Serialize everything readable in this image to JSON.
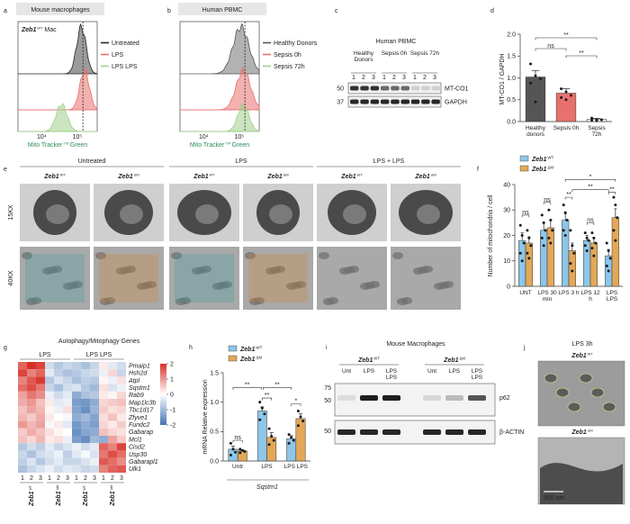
{
  "letters": [
    "a",
    "b",
    "c",
    "d",
    "e",
    "f",
    "g",
    "h",
    "i",
    "j"
  ],
  "genotypes": {
    "wt": {
      "gene": "Zeb1",
      "sup": "WT"
    },
    "dm": {
      "gene": "Zeb1",
      "sup": "ΔM"
    }
  },
  "a": {
    "title": "Mouse macrophages",
    "genotype": {
      "gene": "Zeb1",
      "sup": "WT",
      "suffix": "Mac"
    },
    "legend": [
      {
        "name": "Untreated",
        "color": "#222222"
      },
      {
        "name": "LPS",
        "color": "#e8716d"
      },
      {
        "name": "LPS LPS",
        "color": "#9fd08a"
      }
    ],
    "x_label": {
      "text": "Mito Tracker",
      "sup": "TM",
      "rest": "Green"
    },
    "x_ticks": [
      "10⁴",
      "10⁵"
    ]
  },
  "b": {
    "title": "Human PBMC",
    "legend": [
      {
        "name": "Healthy Donors",
        "color": "#555555"
      },
      {
        "name": "Sepsis 0h",
        "color": "#e8716d"
      },
      {
        "name": "Sepsis 72h",
        "color": "#9fd08a"
      }
    ],
    "x_label": {
      "text": "Mito Tracker",
      "sup": "TM",
      "rest": "Green"
    },
    "x_ticks": [
      "10⁴",
      "10⁵"
    ]
  },
  "c": {
    "title": "Human PBMC",
    "groups": [
      "Healthy Donors",
      "Sepsis 0h",
      "Sepsis 72h"
    ],
    "lanes": [
      "1",
      "2",
      "3"
    ],
    "markers": [
      "50",
      "37"
    ],
    "bands": [
      "MT-CO1",
      "GAPDH"
    ]
  },
  "d": {
    "type": "bar",
    "y_label": "MT-CO1 / GAPDH",
    "categories": [
      "Healthy donors",
      "Sepsis 0h",
      "Sepsis 72h"
    ],
    "values": [
      1.02,
      0.65,
      0.05
    ],
    "errors": [
      0.15,
      0.1,
      0.02
    ],
    "colors": [
      "#555555",
      "#e8716d",
      "#eeeeee"
    ],
    "points": [
      [
        1.32,
        1.05,
        0.98,
        0.88,
        0.45
      ],
      [
        0.75,
        0.68,
        0.6,
        0.55,
        0.5
      ],
      [
        0.08,
        0.05,
        0.04,
        0.03,
        0.02
      ]
    ],
    "ylim": [
      0,
      2
    ],
    "yticks": [
      {
        "value": 0,
        "label": "0.0"
      },
      {
        "value": 0.5,
        "label": "0.5"
      },
      {
        "value": 1,
        "label": "1.0"
      },
      {
        "value": 1.5,
        "label": "1.5"
      },
      {
        "value": 2,
        "label": "2.0"
      }
    ],
    "significance": [
      "**",
      "ns",
      "**"
    ]
  },
  "e": {
    "groups": [
      "Untreated",
      "LPS",
      "LPS + LPS"
    ],
    "rows": [
      "15KX",
      "40KX"
    ]
  },
  "f": {
    "type": "bar",
    "y_label": "Number of mitochondria / cell",
    "categories": [
      "UNT",
      "LPS 30 min",
      "LPS 3 h",
      "LPS 12 h",
      "LPS LPS"
    ],
    "series": [
      {
        "name": "Zeb1",
        "sup": "WT",
        "color": "#8ec6e8",
        "values": [
          18,
          22,
          26,
          18,
          12
        ],
        "errors": [
          3,
          3,
          2.5,
          2,
          2.5
        ],
        "points": [
          [
            24,
            20,
            17,
            13,
            10
          ],
          [
            28,
            25,
            22,
            19,
            16
          ],
          [
            32,
            29,
            26,
            22,
            20
          ],
          [
            21,
            19,
            18,
            16,
            14
          ],
          [
            17,
            14,
            11,
            8,
            6
          ]
        ]
      },
      {
        "name": "Zeb1",
        "sup": "ΔM",
        "color": "#e3a857",
        "values": [
          17,
          23,
          14,
          17,
          27
        ],
        "errors": [
          2.5,
          3,
          3,
          2,
          3.5
        ],
        "points": [
          [
            22,
            19,
            16,
            13,
            11
          ],
          [
            30,
            26,
            22,
            19,
            17
          ],
          [
            22,
            16,
            13,
            9,
            6
          ],
          [
            21,
            19,
            17,
            15,
            12
          ],
          [
            35,
            32,
            27,
            22,
            18
          ]
        ]
      }
    ],
    "ylim": [
      0,
      40
    ],
    "yticks": [
      0,
      10,
      20,
      30,
      40
    ],
    "significance": [
      "ns",
      "ns",
      "**",
      "ns",
      "**",
      "**",
      "*"
    ]
  },
  "g": {
    "title": "Autophagy/Mitophagy Genes",
    "groups": [
      "LPS",
      "LPS LPS"
    ],
    "genes": [
      "Pmaip1",
      "Hsh2d",
      "Atpl",
      "Sqstm1",
      "Rab9",
      "Map1lc3b",
      "Tbc1d17",
      "Zfyve1",
      "Fundc2",
      "Gabarap",
      "Mcl1",
      "Cisd2",
      "Usp30",
      "Gabarapl1",
      "Ulk1"
    ],
    "columns": [
      "1",
      "2",
      "3"
    ],
    "values": [
      [
        1.5,
        2,
        1.8,
        -0.5,
        -0.8,
        -0.6,
        -0.7,
        -0.9,
        -0.6,
        0.2,
        -0.3,
        -0.5
      ],
      [
        1.8,
        1.2,
        1.5,
        -0.3,
        -0.7,
        -0.9,
        -0.8,
        -0.6,
        -0.5,
        -0.2,
        0.4,
        -0.6
      ],
      [
        1.2,
        1.6,
        1.9,
        -0.8,
        -0.4,
        -0.6,
        -0.9,
        -0.7,
        -0.8,
        0.1,
        -0.2,
        0.3
      ],
      [
        1.4,
        1.7,
        1.3,
        -0.6,
        -0.9,
        -0.5,
        -0.4,
        -0.8,
        -1,
        0.3,
        -0.4,
        -0.2
      ],
      [
        0.9,
        1.3,
        1.1,
        -0.2,
        -0.5,
        -0.3,
        -1.2,
        -0.9,
        -0.8,
        0.2,
        0.1,
        0.4
      ],
      [
        0.8,
        1,
        0.6,
        0.2,
        -0.3,
        -0.2,
        -1.4,
        -1.5,
        -1.2,
        0.4,
        0.5,
        0.6
      ],
      [
        0.6,
        0.9,
        0.7,
        0.1,
        -0.2,
        0.3,
        -1.3,
        -1.6,
        -1.1,
        0.5,
        0.3,
        0.4
      ],
      [
        0.7,
        0.5,
        0.8,
        0.2,
        0,
        -0.1,
        -1.2,
        -1,
        -1.3,
        0.3,
        0.6,
        0.2
      ],
      [
        1,
        0.7,
        0.9,
        -0.1,
        0.2,
        -0.3,
        -1.5,
        -1.2,
        -1.4,
        0.4,
        0.2,
        0.5
      ],
      [
        0.5,
        0.8,
        0.6,
        0.3,
        0.1,
        0,
        -1.6,
        -1.3,
        -1.2,
        0.6,
        0.4,
        0.3
      ],
      [
        0.6,
        0.4,
        0.7,
        0.2,
        0.3,
        -0.2,
        -1.4,
        -1.6,
        -1,
        -1.2,
        0.9,
        0.5
      ],
      [
        -0.8,
        -0.5,
        -0.7,
        -0.3,
        -0.6,
        -0.4,
        -0.2,
        -0.5,
        -0.3,
        1.5,
        1.2,
        1.8
      ],
      [
        -0.6,
        -0.9,
        -0.5,
        -0.4,
        -0.2,
        -0.7,
        -0.3,
        -0.1,
        -0.4,
        1.3,
        1.7,
        1.4
      ],
      [
        -0.7,
        -0.4,
        -0.8,
        -0.5,
        -0.3,
        -0.6,
        -0.6,
        -0.4,
        -0.2,
        1.6,
        1.4,
        1.1
      ],
      [
        -0.9,
        -0.6,
        -0.4,
        -0.2,
        -0.5,
        -0.3,
        -0.4,
        -0.6,
        -0.5,
        1.2,
        1.5,
        1.6
      ]
    ],
    "clim": [
      -2,
      2
    ],
    "cticks": [
      2,
      1,
      0,
      -1,
      -2
    ]
  },
  "h": {
    "type": "bar",
    "y_label": "mRNA Relative expression",
    "x_label": "Sqstm1",
    "categories": [
      "Untr",
      "LPS",
      "LPS LPS"
    ],
    "series": [
      {
        "name": "Zeb1",
        "sup": "WT",
        "color": "#8ec6e8",
        "values": [
          0.2,
          0.85,
          0.38
        ],
        "errors": [
          0.05,
          0.07,
          0.05
        ],
        "points": [
          [
            0.3,
            0.2,
            0.15,
            0.1
          ],
          [
            1,
            0.9,
            0.8,
            0.7
          ],
          [
            0.45,
            0.4,
            0.35,
            0.3
          ]
        ]
      },
      {
        "name": "Zeb1",
        "sup": "ΔM",
        "color": "#e3a857",
        "values": [
          0.17,
          0.4,
          0.72
        ],
        "errors": [
          0.02,
          0.08,
          0.08
        ],
        "points": [
          [
            0.2,
            0.18,
            0.16,
            0.14
          ],
          [
            0.55,
            0.42,
            0.35,
            0.28
          ],
          [
            0.85,
            0.75,
            0.68,
            0.6
          ]
        ]
      }
    ],
    "ylim": [
      0,
      1.5
    ],
    "yticks": [
      {
        "value": 0,
        "label": "0.0"
      },
      {
        "value": 0.5,
        "label": "0.5"
      },
      {
        "value": 1,
        "label": "1.0"
      },
      {
        "value": 1.5,
        "label": "1.5"
      }
    ],
    "significance": [
      "ns",
      "**",
      "**",
      "**",
      "*"
    ]
  },
  "i": {
    "title": "Mouse Macrophages",
    "lanes": [
      "Unt",
      "LPS",
      "LPS LPS"
    ],
    "markers": [
      "75",
      "50",
      "50"
    ],
    "bands": [
      "p62",
      "β-ACTIN"
    ]
  },
  "j": {
    "title": "LPS 3h",
    "scale": "500 nm"
  }
}
